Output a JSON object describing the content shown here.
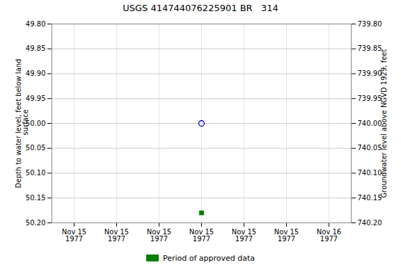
{
  "chart_data": {
    "type": "scatter",
    "title": "USGS 414744076225901 BR   314",
    "ylabel": "Depth to water level, feet below land\n surface",
    "y2label": "Groundwater level above NGVD 1929, feet",
    "categories": [
      "Nov 15\n1977",
      "Nov 15\n1977",
      "Nov 15\n1977",
      "Nov 15\n1977",
      "Nov 15\n1977",
      "Nov 15\n1977",
      "Nov 16\n1977"
    ],
    "series": [
      {
        "values": [
          null,
          null,
          null,
          50.0,
          null,
          null,
          null
        ],
        "color": "#0000cc",
        "marker": "open_circle"
      },
      {
        "name": "Period of approved data",
        "values": [
          null,
          null,
          null,
          50.18,
          null,
          null,
          null
        ],
        "color": "#008000",
        "marker": "square"
      }
    ],
    "ylim": [
      50.2,
      49.8
    ],
    "yticks": [
      {
        "value": 49.8,
        "label": "49.80"
      },
      49.85,
      {
        "value": 49.9,
        "label": "49.90"
      },
      49.95,
      {
        "value": 50.0,
        "label": "50.00"
      },
      50.05,
      {
        "value": 50.1,
        "label": "50.10"
      },
      50.15,
      {
        "value": 50.2,
        "label": "50.20"
      }
    ],
    "y2lim": [
      740.2,
      739.8
    ],
    "y2ticks": [
      {
        "value": 740.2,
        "label": "740.20"
      },
      740.15,
      {
        "value": 740.1,
        "label": "740.10"
      },
      740.05,
      {
        "value": 740.0,
        "label": "740.00"
      },
      739.95,
      {
        "value": 739.9,
        "label": "739.90"
      },
      739.85,
      {
        "value": 739.8,
        "label": "739.80"
      }
    ],
    "grid": true,
    "legend": "bottom"
  }
}
